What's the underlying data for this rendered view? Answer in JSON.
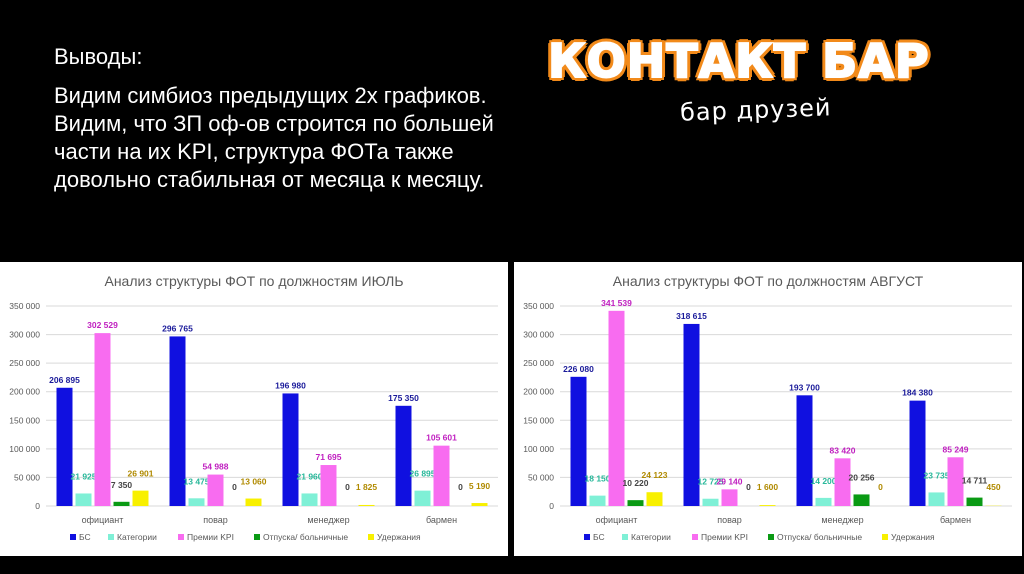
{
  "slide": {
    "heading": "Выводы:",
    "body": "Видим симбиоз предыдущих 2х графиков. Видим, что ЗП оф-ов строится по большей части на их KPI, структура ФОТа также довольно стабильная от месяца к месяцу."
  },
  "logo": {
    "word1": "КОНТАКТ",
    "word2": "БАР",
    "tagline": "бар друзей",
    "colors": {
      "outline": "#f28a1a",
      "text": "#ffffff"
    }
  },
  "chart_data": [
    {
      "type": "bar",
      "title": "Анализ структуры ФОТ по должностям ИЮЛЬ",
      "categories": [
        "официант",
        "повар",
        "менеджер",
        "бармен"
      ],
      "ylim": [
        0,
        350000
      ],
      "yticks": [
        0,
        50000,
        100000,
        150000,
        200000,
        250000,
        300000,
        350000
      ],
      "ytick_labels": [
        "0",
        "50 000",
        "100 000",
        "150 000",
        "200 000",
        "250 000",
        "300 000",
        "350 000"
      ],
      "grid": true,
      "legend_position": "bottom",
      "series": [
        {
          "name": "БС",
          "color": "#1010e0",
          "label_color": "#1a1a9a",
          "values": [
            206895,
            296765,
            196980,
            175350
          ],
          "labels": [
            "206 895",
            "296 765",
            "196 980",
            "175 350"
          ]
        },
        {
          "name": "Категории",
          "color": "#7ff0d6",
          "label_color": "#28b89a",
          "values": [
            21925,
            13475,
            21960,
            26895
          ],
          "labels": [
            "21 925",
            "13 475",
            "21 960",
            "26 895"
          ]
        },
        {
          "name": "Премии KPI",
          "color": "#f86cf0",
          "label_color": "#c020c0",
          "values": [
            302529,
            54988,
            71695,
            105601
          ],
          "labels": [
            "302 529",
            "54 988",
            "71 695",
            "105 601"
          ]
        },
        {
          "name": "Отпуска/ больничные",
          "color": "#0a9a14",
          "label_color": "#444444",
          "values": [
            7350,
            0,
            0,
            0
          ],
          "labels": [
            "7 350",
            "0",
            "0",
            "0"
          ]
        },
        {
          "name": "Удержания",
          "color": "#f8f000",
          "label_color": "#b08a00",
          "values": [
            26901,
            13060,
            1825,
            5190
          ],
          "labels": [
            "26 901",
            "13 060",
            "1 825",
            "5 190"
          ]
        }
      ]
    },
    {
      "type": "bar",
      "title": "Анализ структуры ФОТ по должностям АВГУСТ",
      "categories": [
        "официант",
        "повар",
        "менеджер",
        "бармен"
      ],
      "ylim": [
        0,
        350000
      ],
      "yticks": [
        0,
        50000,
        100000,
        150000,
        200000,
        250000,
        300000,
        350000
      ],
      "ytick_labels": [
        "0",
        "50 000",
        "100 000",
        "150 000",
        "200 000",
        "250 000",
        "300 000",
        "350 000"
      ],
      "grid": true,
      "legend_position": "bottom",
      "series": [
        {
          "name": "БС",
          "color": "#1010e0",
          "label_color": "#1a1a9a",
          "values": [
            226080,
            318615,
            193700,
            184380
          ],
          "labels": [
            "226 080",
            "318 615",
            "193 700",
            "184 380"
          ]
        },
        {
          "name": "Категории",
          "color": "#7ff0d6",
          "label_color": "#28b89a",
          "values": [
            18150,
            12725,
            14200,
            23735
          ],
          "labels": [
            "18 150",
            "12 725",
            "14 200",
            "23 735"
          ]
        },
        {
          "name": "Премии KPI",
          "color": "#f86cf0",
          "label_color": "#c020c0",
          "values": [
            341539,
            29140,
            83420,
            85249
          ],
          "labels": [
            "341 539",
            "29 140",
            "83 420",
            "85 249"
          ]
        },
        {
          "name": "Отпуска/ больничные",
          "color": "#0a9a14",
          "label_color": "#444444",
          "values": [
            10220,
            0,
            20256,
            14711
          ],
          "labels": [
            "10 220",
            "0",
            "20 256",
            "14 711"
          ]
        },
        {
          "name": "Удержания",
          "color": "#f8f000",
          "label_color": "#b08a00",
          "values": [
            24123,
            1600,
            0,
            450
          ],
          "labels": [
            "24 123",
            "1 600",
            "0",
            "450"
          ]
        }
      ]
    }
  ]
}
